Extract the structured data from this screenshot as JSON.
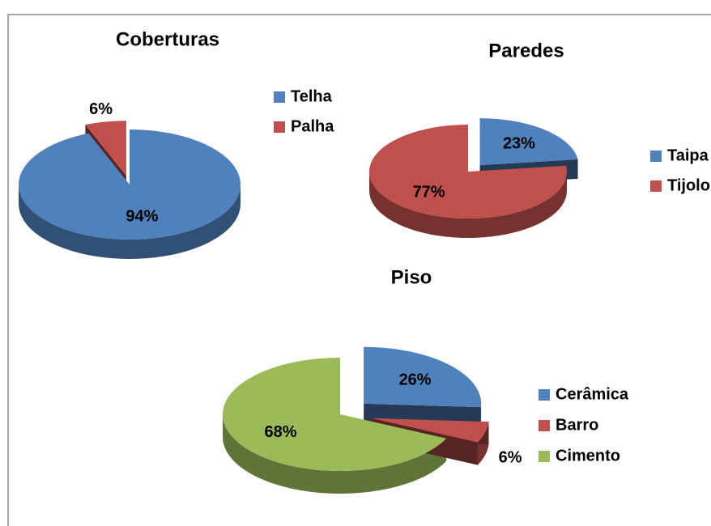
{
  "chart_data": [
    {
      "type": "pie",
      "title": "Coberturas",
      "categories": [
        "Telha",
        "Palha"
      ],
      "values": [
        94,
        6
      ],
      "value_labels": [
        "94%",
        "6%"
      ],
      "colors": [
        "#4f81bd",
        "#c0504d"
      ],
      "exploded": [
        false,
        true
      ]
    },
    {
      "type": "pie",
      "title": "Paredes",
      "categories": [
        "Taipa",
        "Tijolo"
      ],
      "values": [
        23,
        77
      ],
      "value_labels": [
        "23%",
        "77%"
      ],
      "colors": [
        "#4f81bd",
        "#c0504d"
      ],
      "exploded": [
        true,
        false
      ]
    },
    {
      "type": "pie",
      "title": "Piso",
      "categories": [
        "Cerâmica",
        "Barro",
        "Cimento"
      ],
      "values": [
        26,
        6,
        68
      ],
      "value_labels": [
        "26%",
        "6%",
        "68%"
      ],
      "colors": [
        "#4f81bd",
        "#c0504d",
        "#9bbb59"
      ],
      "exploded": [
        true,
        true,
        false
      ]
    }
  ]
}
